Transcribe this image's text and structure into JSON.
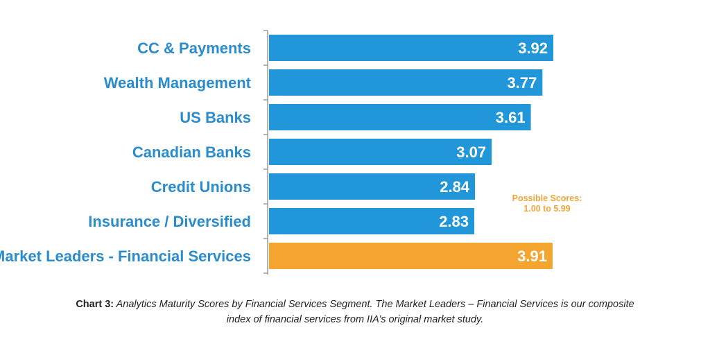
{
  "chart_data": {
    "type": "bar",
    "orientation": "horizontal",
    "categories": [
      "CC & Payments",
      "Wealth Management",
      "US Banks",
      "Canadian Banks",
      "Credit Unions",
      "Insurance / Diversified",
      "Market Leaders - Financial Services"
    ],
    "values": [
      3.92,
      3.77,
      3.61,
      3.07,
      2.84,
      2.83,
      3.91
    ],
    "value_labels": [
      "3.92",
      "3.77",
      "3.61",
      "3.07",
      "2.84",
      "2.83",
      "3.91"
    ],
    "bar_colors": [
      "#2196d9",
      "#2196d9",
      "#2196d9",
      "#2196d9",
      "#2196d9",
      "#2196d9",
      "#f3a530"
    ],
    "label_color": "#2a8ccc",
    "xlim": [
      0,
      5
    ],
    "grid": false,
    "legend": "none",
    "annotation": [
      "Possible Scores:",
      "1.00 to 5.99"
    ]
  },
  "caption": {
    "lead": "Chart 3:",
    "line1": " Analytics Maturity Scores by Financial Services Segment. The Market Leaders – Financial Services is our composite",
    "line2": "index of financial services from IIA’s original market study."
  }
}
